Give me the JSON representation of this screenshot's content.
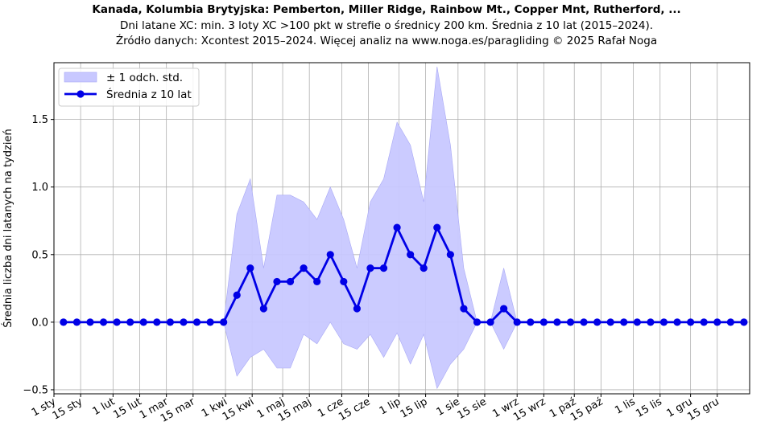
{
  "header": {
    "title": "Kanada, Kolumbia Brytyjska: Pemberton, Miller Ridge, Rainbow Mt., Copper Mnt, Rutherford, ...",
    "subtitle": "Dni latane XC: min. 3 loty XC >100 pkt w strefie o średnicy 200 km. Średnia z 10 lat (2015–2024).",
    "source": "Źródło danych: Xcontest 2015–2024. Więcej analiz na www.noga.es/paragliding © 2025 Rafał Noga"
  },
  "chart_data": {
    "type": "line",
    "ylabel": "Średnia liczba dni latanych na tydzień",
    "xlabel": "",
    "ylim": [
      -0.53,
      1.92
    ],
    "yticks": [
      -0.5,
      0.0,
      0.5,
      1.0,
      1.5
    ],
    "ytick_labels": [
      "−0.5",
      "0.0",
      "0.5",
      "1.0",
      "1.5"
    ],
    "xlim": [
      1,
      366
    ],
    "xticks": [
      1,
      15,
      32,
      46,
      60,
      74,
      91,
      105,
      121,
      135,
      152,
      166,
      182,
      196,
      213,
      227,
      244,
      258,
      274,
      288,
      305,
      319,
      335,
      349
    ],
    "xtick_labels": [
      "1 sty",
      "15 sty",
      "1 lut",
      "15 lut",
      "1 mar",
      "15 mar",
      "1 kwi",
      "15 kwi",
      "1 maj",
      "15 maj",
      "1 cze",
      "15 cze",
      "1 lip",
      "15 lip",
      "1 sie",
      "15 sie",
      "1 wrz",
      "15 wrz",
      "1 paź",
      "15 paź",
      "1 lis",
      "15 lis",
      "1 gru",
      "15 gru"
    ],
    "grid": true,
    "legend_position": "top-left",
    "colors": {
      "line": "#0000e6",
      "band": "#c8c8ff",
      "band_edge": "#a8a8f5"
    },
    "series": [
      {
        "name": "Średnia z 10 lat",
        "x": [
          6,
          13,
          20,
          27,
          34,
          41,
          48,
          55,
          62,
          69,
          76,
          83,
          90,
          97,
          104,
          111,
          118,
          125,
          132,
          139,
          146,
          153,
          160,
          167,
          174,
          181,
          188,
          195,
          202,
          209,
          216,
          223,
          230,
          237,
          244,
          251,
          258,
          265,
          272,
          279,
          286,
          293,
          300,
          307,
          314,
          321,
          328,
          335,
          342,
          349,
          356,
          363
        ],
        "values": [
          0,
          0,
          0,
          0,
          0,
          0,
          0,
          0,
          0,
          0,
          0,
          0,
          0,
          0.2,
          0.4,
          0.1,
          0.3,
          0.3,
          0.4,
          0.3,
          0.5,
          0.3,
          0.1,
          0.4,
          0.4,
          0.7,
          0.5,
          0.4,
          0.7,
          0.5,
          0.1,
          0,
          0,
          0.1,
          0,
          0,
          0,
          0,
          0,
          0,
          0,
          0,
          0,
          0,
          0,
          0,
          0,
          0,
          0,
          0,
          0,
          0
        ]
      },
      {
        "name": "± 1 odch. std.",
        "x": [
          6,
          13,
          20,
          27,
          34,
          41,
          48,
          55,
          62,
          69,
          76,
          83,
          90,
          97,
          104,
          111,
          118,
          125,
          132,
          139,
          146,
          153,
          160,
          167,
          174,
          181,
          188,
          195,
          202,
          209,
          216,
          223,
          230,
          237,
          244,
          251,
          258,
          265,
          272,
          279,
          286,
          293,
          300,
          307,
          314,
          321,
          328,
          335,
          342,
          349,
          356,
          363
        ],
        "std": [
          0,
          0,
          0,
          0,
          0,
          0,
          0,
          0,
          0,
          0,
          0,
          0,
          0,
          0.6,
          0.66,
          0.3,
          0.64,
          0.64,
          0.49,
          0.46,
          0.5,
          0.46,
          0.3,
          0.49,
          0.66,
          0.78,
          0.81,
          0.49,
          1.19,
          0.81,
          0.3,
          0,
          0,
          0.3,
          0,
          0,
          0,
          0,
          0,
          0,
          0,
          0,
          0,
          0,
          0,
          0,
          0,
          0,
          0,
          0,
          0,
          0
        ]
      }
    ]
  }
}
